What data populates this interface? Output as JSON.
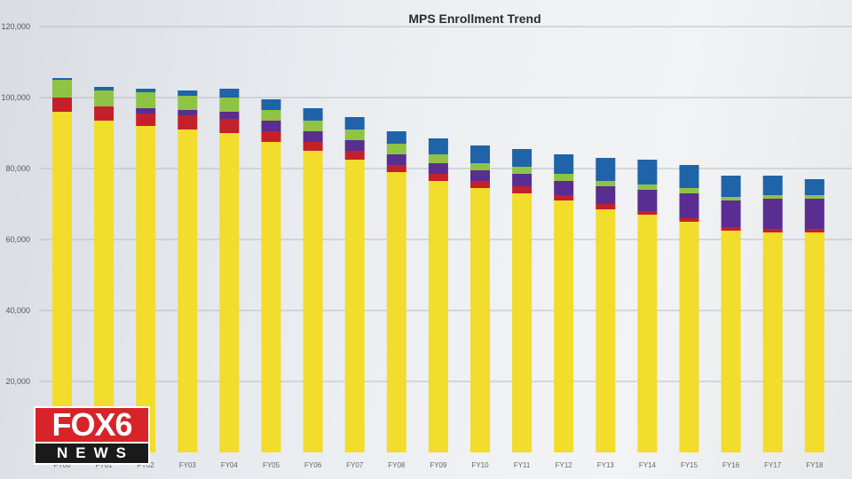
{
  "chart_data": {
    "type": "bar",
    "stacked": true,
    "title": "MPS Enrollment Trend",
    "xlabel": "",
    "ylabel": "",
    "ylim": [
      0,
      120000
    ],
    "grid": true,
    "y_ticks": [
      20000,
      40000,
      60000,
      80000,
      100000,
      120000
    ],
    "y_tick_labels": [
      "20,000",
      "40,000",
      "60,000",
      "80,000",
      "100,000",
      "120,000"
    ],
    "categories": [
      "FY00",
      "FY01",
      "FY02",
      "FY03",
      "FY04",
      "FY05",
      "FY06",
      "FY07",
      "FY08",
      "FY09",
      "FY10",
      "FY11",
      "FY12",
      "FY13",
      "FY14",
      "FY15",
      "FY16",
      "FY17",
      "FY18"
    ],
    "series": [
      {
        "color": "#f2dc2c",
        "values": [
          96000,
          93500,
          92000,
          91000,
          90000,
          87500,
          85000,
          82500,
          79000,
          76500,
          74500,
          73000,
          71000,
          68500,
          67000,
          65000,
          62500,
          62000,
          62000
        ]
      },
      {
        "color": "#c4202c",
        "values": [
          4000,
          4000,
          3500,
          4000,
          4000,
          3000,
          2500,
          2500,
          2000,
          2000,
          2000,
          2000,
          1500,
          1500,
          1000,
          1000,
          1000,
          1000,
          1000
        ]
      },
      {
        "color": "#5a2d92",
        "values": [
          0,
          0,
          1500,
          1500,
          2000,
          3000,
          3000,
          3000,
          3000,
          3000,
          3000,
          3500,
          4000,
          5000,
          6000,
          7000,
          7500,
          8500,
          8500
        ]
      },
      {
        "color": "#8fc343",
        "values": [
          5000,
          4500,
          4500,
          4000,
          4000,
          3000,
          3000,
          3000,
          3000,
          2500,
          2000,
          2000,
          2000,
          1500,
          1500,
          1500,
          1000,
          1000,
          1000
        ]
      },
      {
        "color": "#1f63a8",
        "values": [
          500,
          1000,
          1000,
          1500,
          2500,
          3000,
          3500,
          3500,
          3500,
          4500,
          5000,
          5000,
          5500,
          6500,
          7000,
          6500,
          6000,
          5500,
          4500
        ]
      }
    ]
  },
  "logo": {
    "top": "FOX6",
    "bottom": "NEWS"
  }
}
